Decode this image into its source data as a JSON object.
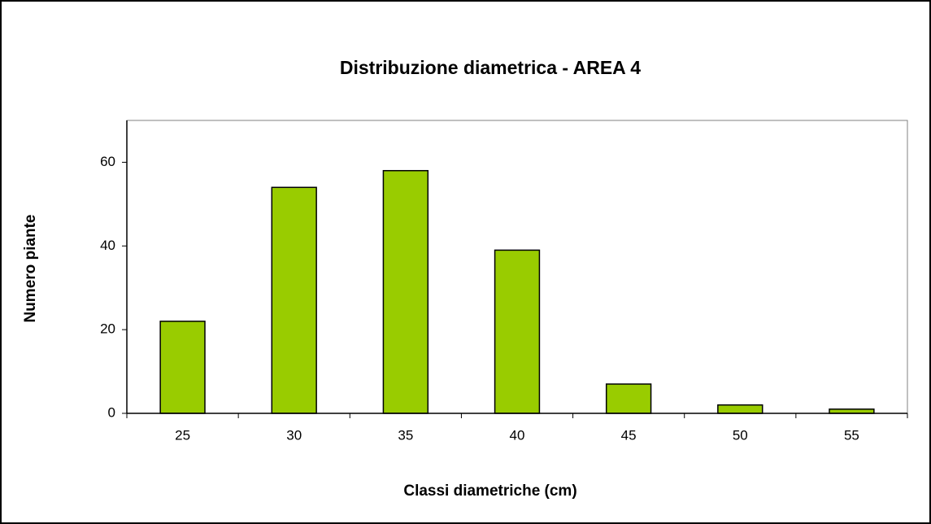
{
  "chart_data": {
    "type": "bar",
    "title": "Distribuzione diametrica - AREA 4",
    "x_label": "Classi diametriche (cm)",
    "y_label": "Numero piante",
    "categories": [
      "25",
      "30",
      "35",
      "40",
      "45",
      "50",
      "55"
    ],
    "values": [
      22,
      54,
      58,
      39,
      7,
      2,
      1
    ],
    "color": "#99cc00",
    "ylim": [
      0,
      70
    ],
    "yticks": [
      0,
      20,
      40,
      60
    ],
    "grid": false
  }
}
